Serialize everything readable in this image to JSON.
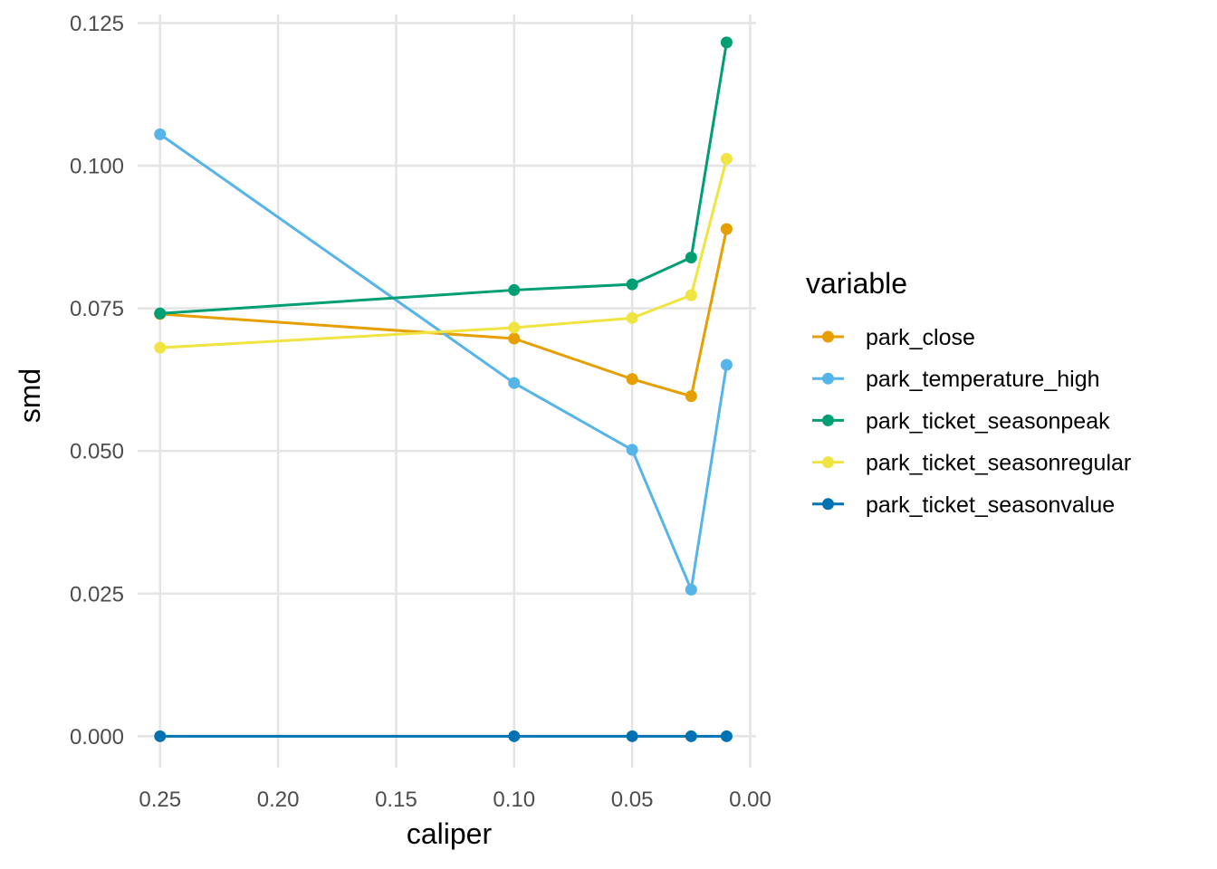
{
  "chart_data": {
    "type": "line",
    "xlabel": "caliper",
    "ylabel": "smd",
    "x_axis_reversed": true,
    "xlim": [
      0.2595,
      -0.0025
    ],
    "ylim": [
      -0.0055,
      0.1265
    ],
    "x_ticks": [
      0.25,
      0.2,
      0.15,
      0.1,
      0.05,
      0.0
    ],
    "x_tick_labels": [
      "0.25",
      "0.20",
      "0.15",
      "0.10",
      "0.05",
      "0.00"
    ],
    "y_ticks": [
      0.0,
      0.025,
      0.05,
      0.075,
      0.1,
      0.125
    ],
    "y_tick_labels": [
      "0.000",
      "0.025",
      "0.050",
      "0.075",
      "0.100",
      "0.125"
    ],
    "grid": true,
    "legend": {
      "title": "variable",
      "position": "right"
    },
    "x": [
      0.25,
      0.1,
      0.05,
      0.025,
      0.01
    ],
    "series": [
      {
        "name": "park_close",
        "color": "#E69F00",
        "values": [
          0.074,
          0.0697,
          0.0626,
          0.0596,
          0.0889
        ]
      },
      {
        "name": "park_temperature_high",
        "color": "#56B4E9",
        "values": [
          0.1055,
          0.0619,
          0.0502,
          0.0257,
          0.0651
        ]
      },
      {
        "name": "park_ticket_seasonpeak",
        "color": "#009E73",
        "values": [
          0.0741,
          0.0782,
          0.0792,
          0.0839,
          0.1216
        ]
      },
      {
        "name": "park_ticket_seasonregular",
        "color": "#F0E442",
        "values": [
          0.0681,
          0.0716,
          0.0733,
          0.0773,
          0.1012
        ]
      },
      {
        "name": "park_ticket_seasonvalue",
        "color": "#0072B2",
        "values": [
          0.0,
          0.0,
          0.0,
          0.0,
          0.0
        ]
      }
    ]
  }
}
